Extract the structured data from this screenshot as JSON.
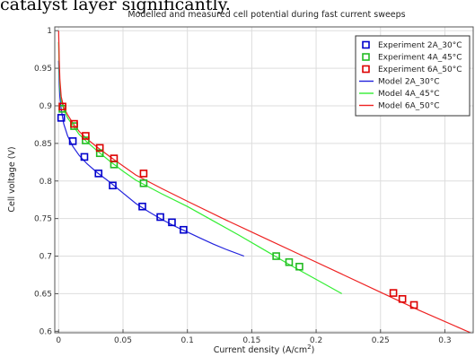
{
  "page_text": "catalyst layer significantly.",
  "chart_data": {
    "type": "scatter",
    "title": "Modelled and measured cell potential during fast current sweeps",
    "xlabel": "Current density (A/cm",
    "xlabel_sup": "2",
    "xlabel_end": ")",
    "ylabel": "Cell voltage (V)",
    "xlim": [
      -0.003,
      0.322
    ],
    "ylim": [
      0.598,
      1.005
    ],
    "x_ticks": [
      0,
      0.05,
      0.1,
      0.15,
      0.2,
      0.25,
      0.3
    ],
    "x_tick_labels": [
      "0",
      "0.05",
      "0.1",
      "0.15",
      "0.2",
      "0.25",
      "0.3"
    ],
    "y_ticks": [
      0.6,
      0.65,
      0.7,
      0.75,
      0.8,
      0.85,
      0.9,
      0.95,
      1
    ],
    "y_tick_labels": [
      "0.6",
      "0.65",
      "0.7",
      "0.75",
      "0.8",
      "0.85",
      "0.9",
      "0.95",
      "1"
    ],
    "grid": true,
    "legend_position": "top-right",
    "series": [
      {
        "name": "Experiment 2A_30°C",
        "kind": "markers",
        "color": "#0000cc",
        "x": [
          0.002,
          0.011,
          0.02,
          0.031,
          0.042,
          0.065,
          0.079,
          0.088,
          0.097
        ],
        "y": [
          0.884,
          0.853,
          0.832,
          0.81,
          0.794,
          0.766,
          0.752,
          0.745,
          0.735
        ]
      },
      {
        "name": "Experiment 4A_45°C",
        "kind": "markers",
        "color": "#22bb22",
        "x": [
          0.003,
          0.012,
          0.021,
          0.032,
          0.043,
          0.066,
          0.169,
          0.179,
          0.187
        ],
        "y": [
          0.896,
          0.873,
          0.854,
          0.837,
          0.822,
          0.797,
          0.7,
          0.692,
          0.686
        ]
      },
      {
        "name": "Experiment 6A_50°C",
        "kind": "markers",
        "color": "#dd0000",
        "x": [
          0.003,
          0.012,
          0.021,
          0.032,
          0.043,
          0.066,
          0.26,
          0.267,
          0.276
        ],
        "y": [
          0.899,
          0.876,
          0.86,
          0.844,
          0.83,
          0.81,
          0.651,
          0.643,
          0.635
        ]
      },
      {
        "name": "Model 2A_30°C",
        "kind": "line",
        "color": "#2222dd",
        "x": [
          0.0,
          0.0005,
          0.001,
          0.002,
          0.004,
          0.007,
          0.011,
          0.016,
          0.022,
          0.03,
          0.04,
          0.05,
          0.06,
          0.07,
          0.08,
          0.09,
          0.1,
          0.11,
          0.12,
          0.13,
          0.144
        ],
        "y": [
          0.96,
          0.93,
          0.912,
          0.895,
          0.876,
          0.86,
          0.846,
          0.834,
          0.823,
          0.811,
          0.798,
          0.784,
          0.77,
          0.759,
          0.749,
          0.74,
          0.732,
          0.724,
          0.716,
          0.709,
          0.7
        ]
      },
      {
        "name": "Model 4A_45°C",
        "kind": "line",
        "color": "#33ee33",
        "x": [
          0.0,
          0.0005,
          0.001,
          0.002,
          0.004,
          0.007,
          0.011,
          0.016,
          0.022,
          0.03,
          0.04,
          0.05,
          0.06,
          0.08,
          0.1,
          0.12,
          0.14,
          0.16,
          0.18,
          0.2,
          0.22
        ],
        "y": [
          0.985,
          0.945,
          0.925,
          0.907,
          0.895,
          0.884,
          0.874,
          0.862,
          0.852,
          0.84,
          0.826,
          0.813,
          0.801,
          0.783,
          0.766,
          0.747,
          0.728,
          0.708,
          0.688,
          0.669,
          0.65
        ]
      },
      {
        "name": "Model 6A_50°C",
        "kind": "line",
        "color": "#ee2222",
        "x": [
          0.0,
          0.0005,
          0.001,
          0.002,
          0.004,
          0.007,
          0.011,
          0.016,
          0.022,
          0.03,
          0.04,
          0.05,
          0.06,
          0.08,
          0.1,
          0.13,
          0.16,
          0.19,
          0.22,
          0.25,
          0.28,
          0.32
        ],
        "y": [
          1.0,
          0.96,
          0.935,
          0.912,
          0.898,
          0.888,
          0.877,
          0.866,
          0.856,
          0.845,
          0.832,
          0.82,
          0.808,
          0.79,
          0.773,
          0.748,
          0.724,
          0.7,
          0.676,
          0.652,
          0.628,
          0.598
        ]
      }
    ]
  }
}
